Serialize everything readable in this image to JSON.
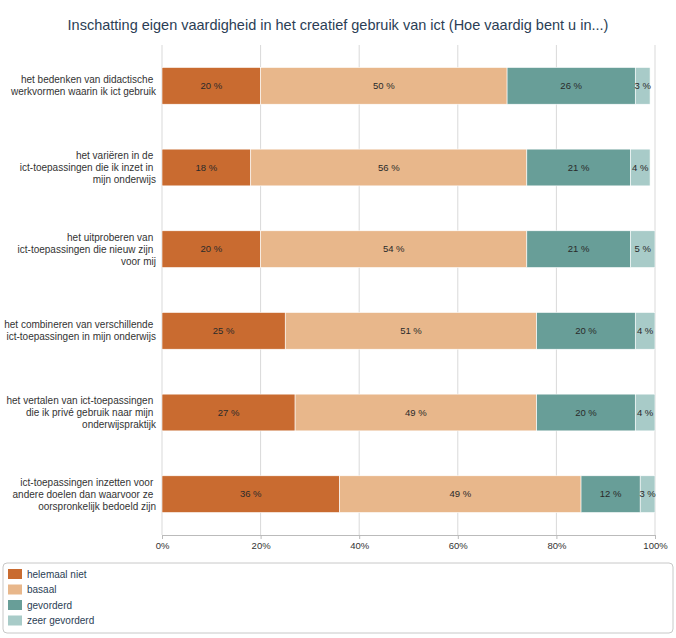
{
  "chart_data": {
    "type": "bar",
    "orientation": "horizontal",
    "stacked": true,
    "title": "Inschatting eigen vaardigheid in het creatief gebruik van ict (Hoe vaardig bent u in...)",
    "categories": [
      "het bedenken van didactische werkvormen waarin ik ict gebruik",
      "het variëren in de ict-toepassingen die ik inzet in mijn onderwijs",
      "het uitproberen van ict-toepassingen die nieuw zijn voor mij",
      "het combineren van verschillende ict-toepassingen in mijn onderwijs",
      "het vertalen van ict-toepassingen die ik privé gebruik naar mijn onderwijspraktijk",
      "ict-toepassingen inzetten voor andere doelen dan waarvoor ze oorspronkelijk bedoeld zijn"
    ],
    "series": [
      {
        "name": "helemaal niet",
        "color": "#c96b30",
        "values": [
          20,
          18,
          20,
          25,
          27,
          36
        ],
        "value_labels": [
          "20 %",
          "18 %",
          "20 %",
          "25 %",
          "27 %",
          "36 %"
        ]
      },
      {
        "name": "basaal",
        "color": "#e8b78b",
        "values": [
          50,
          56,
          54,
          51,
          49,
          49
        ],
        "value_labels": [
          "50 %",
          "56 %",
          "54 %",
          "51 %",
          "49 %",
          "49 %"
        ]
      },
      {
        "name": "gevorderd",
        "color": "#689e98",
        "values": [
          26,
          21,
          21,
          20,
          20,
          12
        ],
        "value_labels": [
          "26 %",
          "21 %",
          "21 %",
          "20 %",
          "20 %",
          "12 %"
        ]
      },
      {
        "name": "zeer gevorderd",
        "color": "#a8cbc8",
        "values": [
          3,
          4,
          5,
          4,
          4,
          3
        ],
        "value_labels": [
          "3 %",
          "4 %",
          "5 %",
          "4 %",
          "4 %",
          "3 %"
        ]
      }
    ],
    "xlim": [
      0,
      100
    ],
    "xticks": [
      {
        "value": 0,
        "label": "0%"
      },
      {
        "value": 20,
        "label": "20%"
      },
      {
        "value": 40,
        "label": "40%"
      },
      {
        "value": 60,
        "label": "60%"
      },
      {
        "value": 80,
        "label": "80%"
      },
      {
        "value": 100,
        "label": "100%"
      }
    ],
    "grid": true,
    "data_labels": true,
    "legend": "bottom"
  }
}
